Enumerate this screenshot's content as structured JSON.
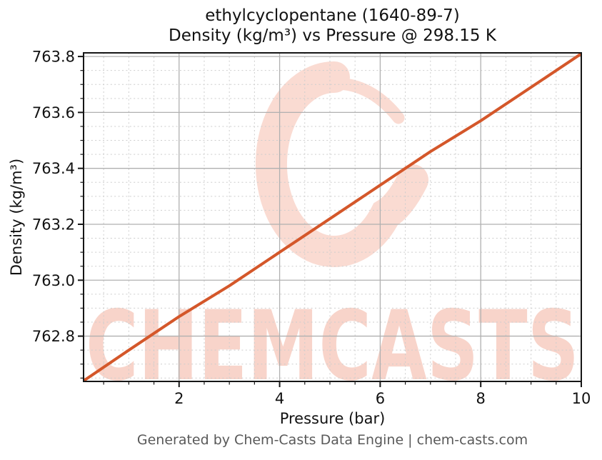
{
  "page": {
    "footer": "Generated by Chem-Casts Data Engine | chem-casts.com"
  },
  "chart_data": {
    "type": "line",
    "title_line1": "ethylcyclopentane (1640-89-7)",
    "title_line2": "Density (kg/m³) vs Pressure @ 298.15 K",
    "xlabel": "Pressure (bar)",
    "ylabel": "Density (kg/m³)",
    "compound": "ethylcyclopentane",
    "cas_number": "1640-89-7",
    "temperature": "298.15 K",
    "xlim": [
      0.1,
      10
    ],
    "ylim": [
      762.638,
      763.813
    ],
    "x_major_ticks": [
      2,
      4,
      6,
      8,
      10
    ],
    "x_tick_labels": [
      "2",
      "4",
      "6",
      "8",
      "10"
    ],
    "x_minor_step": 0.5,
    "y_major_ticks": [
      762.8,
      763.0,
      763.2,
      763.4,
      763.6,
      763.8
    ],
    "y_tick_labels": [
      "762.8",
      "763.0",
      "763.2",
      "763.4",
      "763.6",
      "763.8"
    ],
    "y_minor_step": 0.05,
    "grid": true,
    "legend_position": "none",
    "series": [
      {
        "name": "density",
        "color": "#d4572a",
        "x": [
          0.1,
          1,
          2,
          3,
          4,
          5,
          6,
          7,
          8,
          9,
          10
        ],
        "y": [
          762.64,
          762.75,
          762.87,
          762.98,
          763.1,
          763.22,
          763.34,
          763.46,
          763.57,
          763.69,
          763.81
        ]
      }
    ],
    "watermark": {
      "text": "CHEMCASTS",
      "text_color": "#f8d4ca",
      "logo_color": "#fadbd2"
    },
    "colors": {
      "major_grid": "#b0b0b0",
      "minor_grid": "#cdcdcd",
      "spine": "#161616",
      "tick": "#161616",
      "title_text": "#111111",
      "footer_text": "#595959"
    }
  }
}
